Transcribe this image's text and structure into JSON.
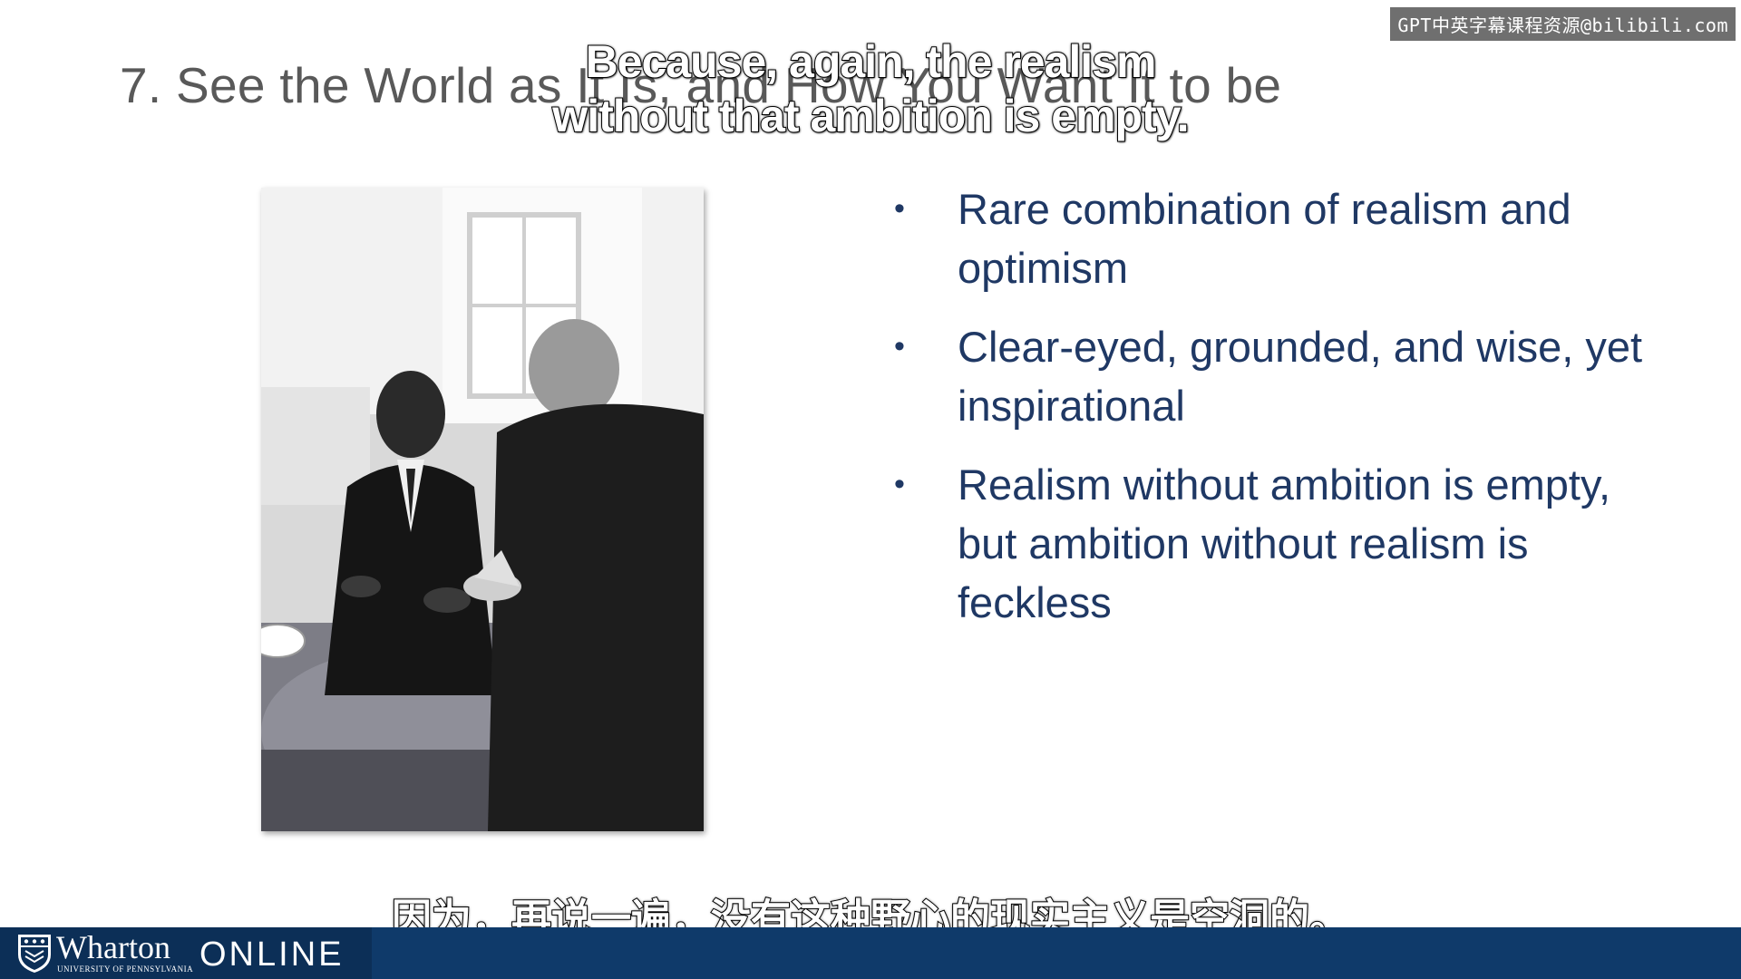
{
  "slide": {
    "title": "7. See the World as It Is, and How You Want It to be",
    "bullets": [
      "Rare combination of realism and optimism",
      "Clear-eyed, grounded, and wise, yet inspirational",
      "Realism without ambition is empty, but ambition without realism is feckless"
    ],
    "bullet_glyph": "•",
    "photo": "black-and-white photo of two men in conversation seated in armchairs"
  },
  "subtitles": {
    "english_line1": "Because, again, the realism",
    "english_line2": "without that ambition is empty.",
    "chinese": "因为，再说一遍，没有这种野心的现实主义是空洞的。"
  },
  "watermark": {
    "text": "GPT中英字幕课程资源@bilibili.com"
  },
  "footer": {
    "brand": "Wharton",
    "brand_sub": "University of Pennsylvania",
    "online": "ONLINE",
    "colors": {
      "bar": "#0f3a6a",
      "brand_block": "#0c2f57"
    }
  },
  "colors": {
    "title": "#595959",
    "bullet_text": "#1f3864",
    "background": "#ffffff"
  }
}
